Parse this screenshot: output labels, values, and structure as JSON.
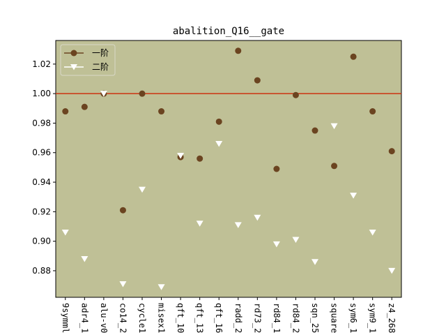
{
  "chart_data": {
    "type": "scatter",
    "title": "abalition_Q16__gate",
    "xlabel": "",
    "ylabel": "",
    "ylim": [
      0.862,
      1.036
    ],
    "yticks": [
      "0.88",
      "0.90",
      "0.92",
      "0.94",
      "0.96",
      "0.98",
      "1.00",
      "1.02"
    ],
    "categories": [
      "9symml",
      "adr4_1",
      "alu-v0",
      "co14_2",
      "cycle1",
      "misex1",
      "qft_10",
      "qft_13",
      "qft_16",
      "radd_2",
      "rd73_2",
      "rd84_1",
      "rd84_2",
      "sqn_25",
      "square",
      "sym6_1",
      "sym9_1",
      "z4_268"
    ],
    "reference_line": {
      "y": 1.0,
      "color": "#cc3311"
    },
    "series": [
      {
        "name": "一阶",
        "marker": "circle",
        "color": "#6b4420",
        "values": [
          0.988,
          0.991,
          1.0,
          0.921,
          1.0,
          0.988,
          0.957,
          0.956,
          0.981,
          1.029,
          1.009,
          0.949,
          0.999,
          0.975,
          0.951,
          1.025,
          0.988,
          0.961
        ]
      },
      {
        "name": "二阶",
        "marker": "triangle-down",
        "color": "#ffffff",
        "values": [
          0.906,
          0.888,
          1.0,
          0.871,
          0.935,
          0.869,
          0.958,
          0.912,
          0.966,
          0.911,
          0.916,
          0.898,
          0.901,
          0.886,
          0.978,
          0.931,
          0.906,
          0.88
        ]
      }
    ],
    "legend_position": "top-left",
    "plot_background": "#bfc096",
    "grid": false
  }
}
